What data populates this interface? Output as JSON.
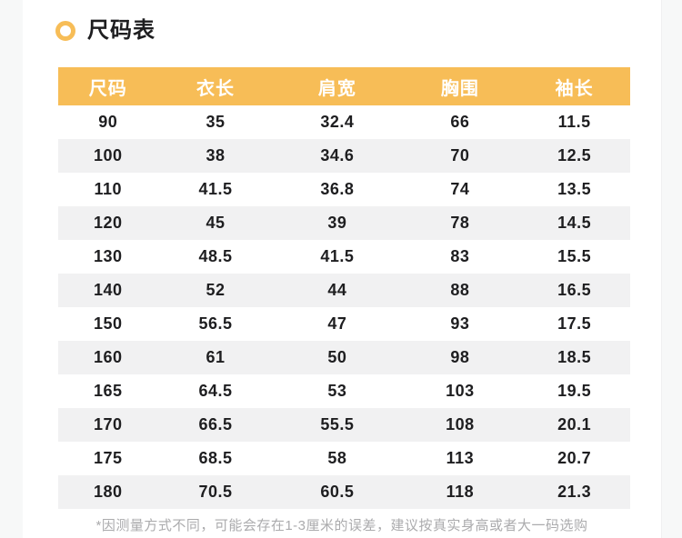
{
  "page": {
    "title": "尺码表",
    "footnote": "*因测量方式不同，可能会存在1-3厘米的误差，建议按真实身高或者大一码选购"
  },
  "colors": {
    "accent": "#F7BD57",
    "stripe": "#F1F1F2",
    "text": "#1E1E20",
    "muted": "#ABABAD",
    "band": "#F7F8F8"
  },
  "icons": {
    "bullet": "circle-ring"
  },
  "table": {
    "columns": [
      "尺码",
      "衣长",
      "肩宽",
      "胸围",
      "袖长"
    ],
    "rows": [
      [
        "90",
        "35",
        "32.4",
        "66",
        "11.5"
      ],
      [
        "100",
        "38",
        "34.6",
        "70",
        "12.5"
      ],
      [
        "110",
        "41.5",
        "36.8",
        "74",
        "13.5"
      ],
      [
        "120",
        "45",
        "39",
        "78",
        "14.5"
      ],
      [
        "130",
        "48.5",
        "41.5",
        "83",
        "15.5"
      ],
      [
        "140",
        "52",
        "44",
        "88",
        "16.5"
      ],
      [
        "150",
        "56.5",
        "47",
        "93",
        "17.5"
      ],
      [
        "160",
        "61",
        "50",
        "98",
        "18.5"
      ],
      [
        "165",
        "64.5",
        "53",
        "103",
        "19.5"
      ],
      [
        "170",
        "66.5",
        "55.5",
        "108",
        "20.1"
      ],
      [
        "175",
        "68.5",
        "58",
        "113",
        "20.7"
      ],
      [
        "180",
        "70.5",
        "60.5",
        "118",
        "21.3"
      ]
    ]
  }
}
